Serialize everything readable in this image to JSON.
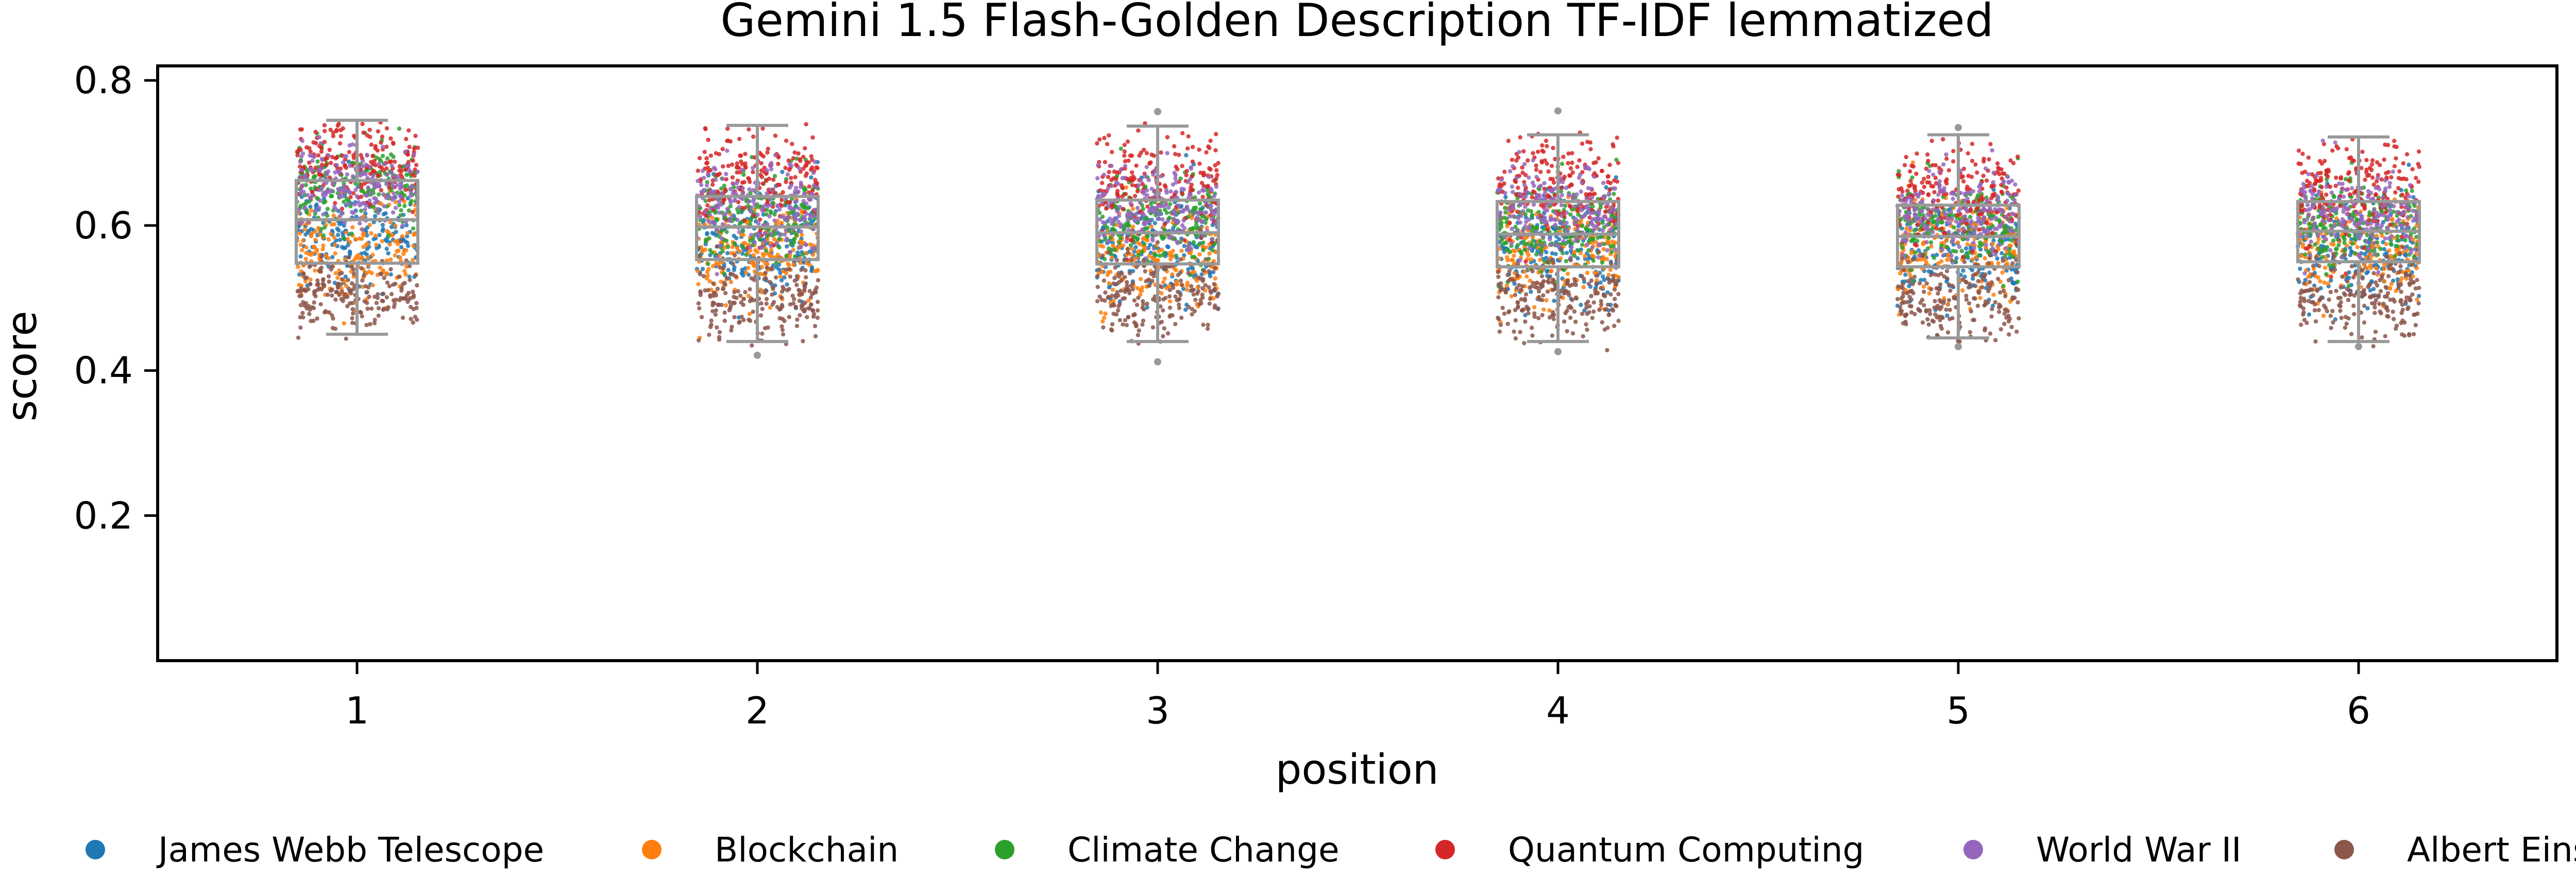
{
  "chart_data": {
    "type": "box-strip",
    "title": "Gemini 1.5 Flash-Golden Description TF-IDF lemmatized",
    "xlabel": "position",
    "ylabel": "score",
    "categories": [
      "1",
      "2",
      "3",
      "4",
      "5",
      "6"
    ],
    "ylim": [
      0.0,
      0.82
    ],
    "yticks": [
      0.2,
      0.4,
      0.6,
      0.8
    ],
    "ytick_labels": [
      "0.2",
      "0.4",
      "0.6",
      "0.8"
    ],
    "grid": false,
    "legend_position": "bottom",
    "box_color": "#999999",
    "boxes": [
      {
        "category": "1",
        "whisker_low": 0.45,
        "q1": 0.548,
        "median": 0.608,
        "q3": 0.662,
        "whisker_high": 0.745
      },
      {
        "category": "2",
        "whisker_low": 0.44,
        "q1": 0.553,
        "median": 0.598,
        "q3": 0.64,
        "whisker_high": 0.738
      },
      {
        "category": "3",
        "whisker_low": 0.44,
        "q1": 0.547,
        "median": 0.59,
        "q3": 0.635,
        "whisker_high": 0.737
      },
      {
        "category": "4",
        "whisker_low": 0.44,
        "q1": 0.543,
        "median": 0.588,
        "q3": 0.633,
        "whisker_high": 0.725
      },
      {
        "category": "5",
        "whisker_low": 0.445,
        "q1": 0.543,
        "median": 0.585,
        "q3": 0.628,
        "whisker_high": 0.725
      },
      {
        "category": "6",
        "whisker_low": 0.44,
        "q1": 0.55,
        "median": 0.592,
        "q3": 0.633,
        "whisker_high": 0.722
      }
    ],
    "outliers": [
      {
        "category": "2",
        "value": 0.421
      },
      {
        "category": "3",
        "value": 0.412
      },
      {
        "category": "3",
        "value": 0.757
      },
      {
        "category": "4",
        "value": 0.426
      },
      {
        "category": "4",
        "value": 0.758
      },
      {
        "category": "5",
        "value": 0.735
      },
      {
        "category": "5",
        "value": 0.433
      },
      {
        "category": "6",
        "value": 0.433
      }
    ],
    "series": [
      {
        "name": "James Webb Telescope",
        "color": "#1f77b4",
        "per_category": [
          {
            "mean": 0.585,
            "sd": 0.035
          },
          {
            "mean": 0.575,
            "sd": 0.035
          },
          {
            "mean": 0.575,
            "sd": 0.035
          },
          {
            "mean": 0.57,
            "sd": 0.035
          },
          {
            "mean": 0.565,
            "sd": 0.035
          },
          {
            "mean": 0.565,
            "sd": 0.035
          }
        ]
      },
      {
        "name": "Blockchain",
        "color": "#ff7f0e",
        "per_category": [
          {
            "mean": 0.565,
            "sd": 0.035
          },
          {
            "mean": 0.565,
            "sd": 0.035
          },
          {
            "mean": 0.56,
            "sd": 0.035
          },
          {
            "mean": 0.56,
            "sd": 0.035
          },
          {
            "mean": 0.565,
            "sd": 0.035
          },
          {
            "mean": 0.57,
            "sd": 0.035
          }
        ]
      },
      {
        "name": "Climate Change",
        "color": "#2ca02c",
        "per_category": [
          {
            "mean": 0.655,
            "sd": 0.03
          },
          {
            "mean": 0.615,
            "sd": 0.03
          },
          {
            "mean": 0.605,
            "sd": 0.03
          },
          {
            "mean": 0.6,
            "sd": 0.03
          },
          {
            "mean": 0.6,
            "sd": 0.03
          },
          {
            "mean": 0.605,
            "sd": 0.03
          }
        ]
      },
      {
        "name": "Quantum Computing",
        "color": "#d62728",
        "per_category": [
          {
            "mean": 0.685,
            "sd": 0.03
          },
          {
            "mean": 0.665,
            "sd": 0.035
          },
          {
            "mean": 0.66,
            "sd": 0.035
          },
          {
            "mean": 0.655,
            "sd": 0.035
          },
          {
            "mean": 0.65,
            "sd": 0.035
          },
          {
            "mean": 0.65,
            "sd": 0.035
          }
        ]
      },
      {
        "name": "World War II",
        "color": "#9467bd",
        "per_category": [
          {
            "mean": 0.655,
            "sd": 0.025
          },
          {
            "mean": 0.63,
            "sd": 0.03
          },
          {
            "mean": 0.625,
            "sd": 0.03
          },
          {
            "mean": 0.62,
            "sd": 0.03
          },
          {
            "mean": 0.615,
            "sd": 0.03
          },
          {
            "mean": 0.615,
            "sd": 0.03
          }
        ]
      },
      {
        "name": "Albert Einstein",
        "color": "#8c564b",
        "per_category": [
          {
            "mean": 0.505,
            "sd": 0.025
          },
          {
            "mean": 0.5,
            "sd": 0.03
          },
          {
            "mean": 0.5,
            "sd": 0.03
          },
          {
            "mean": 0.5,
            "sd": 0.03
          },
          {
            "mean": 0.495,
            "sd": 0.03
          },
          {
            "mean": 0.5,
            "sd": 0.03
          }
        ]
      }
    ]
  }
}
